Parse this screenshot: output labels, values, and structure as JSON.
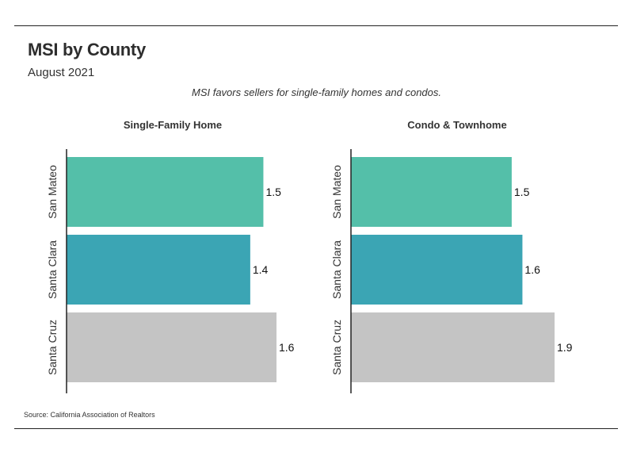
{
  "header": {
    "title": "MSI by County",
    "subtitle": "August 2021",
    "caption": "MSI favors sellers for single-family homes and condos."
  },
  "footer": {
    "source": "Source:  California Association of Realtors"
  },
  "colors": {
    "san_mateo": "#54bfa9",
    "santa_clara": "#3ba5b4",
    "santa_cruz": "#c4c4c4",
    "axis": "#222222"
  },
  "chart_data": [
    {
      "type": "bar",
      "orientation": "horizontal",
      "title": "Single-Family Home",
      "categories": [
        "San Mateo",
        "Santa Clara",
        "Santa Cruz"
      ],
      "values": [
        1.5,
        1.4,
        1.6
      ],
      "value_labels": [
        "1.5",
        "1.4",
        "1.6"
      ],
      "xlim": [
        0,
        1.6
      ]
    },
    {
      "type": "bar",
      "orientation": "horizontal",
      "title": "Condo & Townhome",
      "categories": [
        "San Mateo",
        "Santa Clara",
        "Santa Cruz"
      ],
      "values": [
        1.5,
        1.6,
        1.9
      ],
      "value_labels": [
        "1.5",
        "1.6",
        "1.9"
      ],
      "xlim": [
        0,
        1.9
      ]
    }
  ]
}
